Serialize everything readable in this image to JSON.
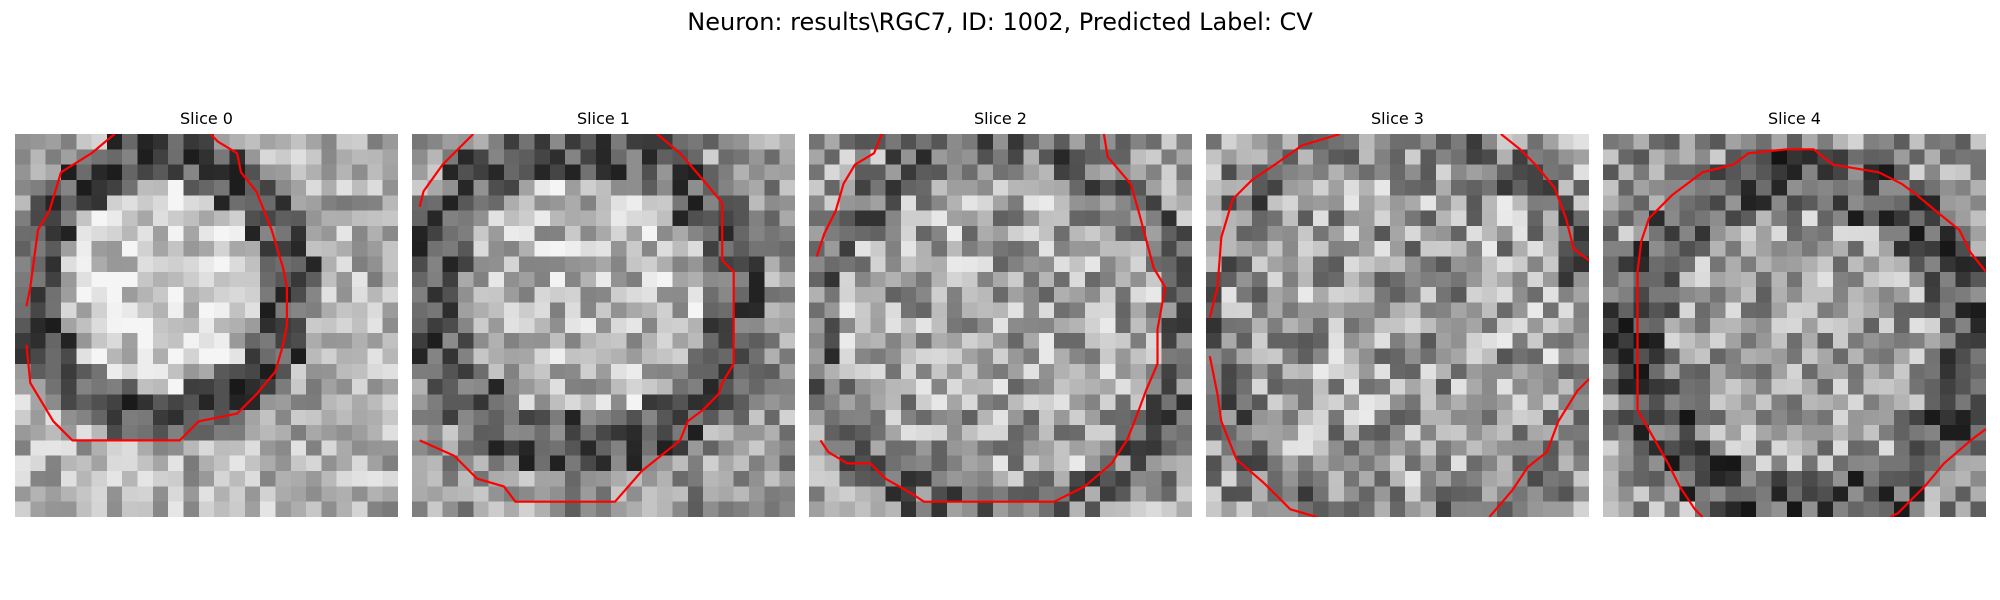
{
  "figure": {
    "title": "Neuron: results\\RGC7, ID: 1002, Predicted Label: CV",
    "slices": [
      {
        "title": "Slice 0",
        "contour_color": "#ff0000",
        "seed": 11
      },
      {
        "title": "Slice 1",
        "contour_color": "#ff0000",
        "seed": 23
      },
      {
        "title": "Slice 2",
        "contour_color": "#ff0000",
        "seed": 37
      },
      {
        "title": "Slice 3",
        "contour_color": "#ff0000",
        "seed": 51
      },
      {
        "title": "Slice 4",
        "contour_color": "#ff0000",
        "seed": 67
      }
    ],
    "grid_size": 25,
    "colormap": "gray"
  }
}
